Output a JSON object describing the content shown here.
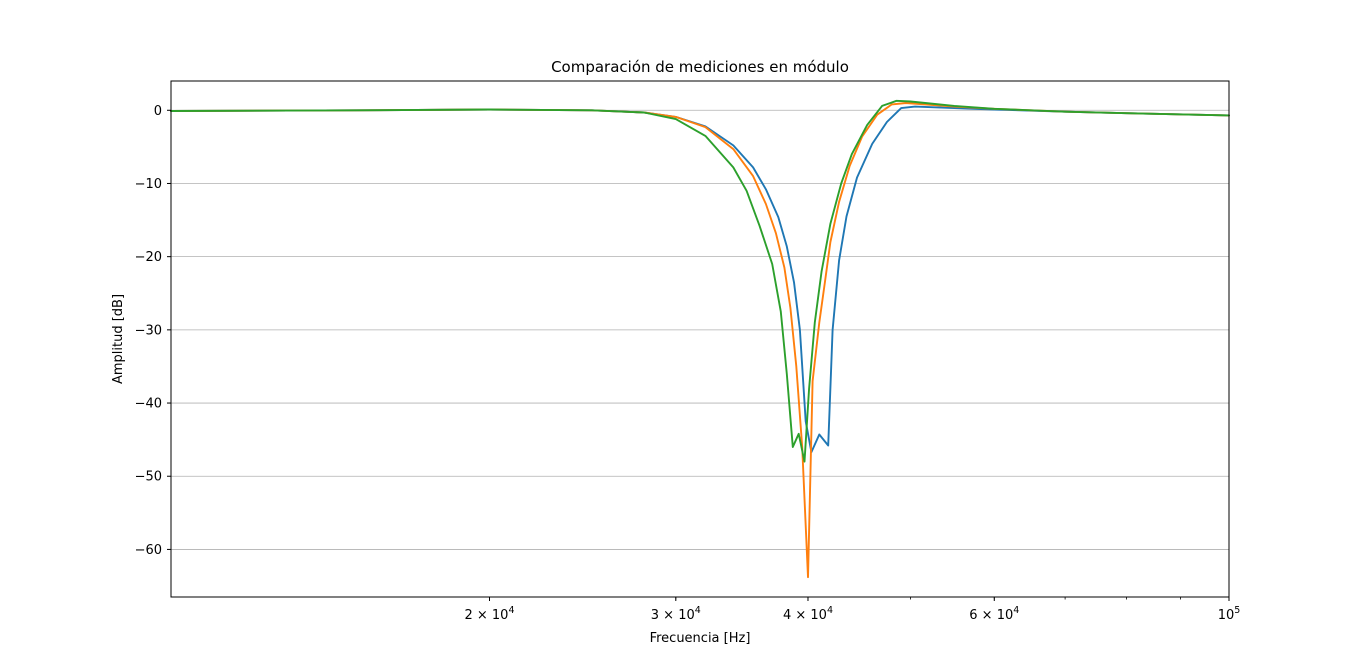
{
  "chart_data": {
    "type": "line",
    "title": "Comparación de mediciones en módulo",
    "xlabel": "Frecuencia [Hz]",
    "ylabel": "Amplitud [dB]",
    "xscale": "log",
    "xlim": [
      10000,
      100000
    ],
    "ylim": [
      -66.5,
      4
    ],
    "grid": "horizontal",
    "legend": "none",
    "x_ticks": [
      {
        "value": 20000,
        "mantissa": "2",
        "exponent": "4"
      },
      {
        "value": 30000,
        "mantissa": "3",
        "exponent": "4"
      },
      {
        "value": 40000,
        "mantissa": "4",
        "exponent": "4"
      },
      {
        "value": 60000,
        "mantissa": "6",
        "exponent": "4"
      },
      {
        "value": 100000,
        "mantissa": "",
        "exponent": "5"
      }
    ],
    "x_tick_base": "10",
    "y_ticks": [
      0,
      -10,
      -20,
      -30,
      -40,
      -50,
      -60
    ],
    "series": [
      {
        "color": "#1f77b4",
        "x": [
          10000,
          15000,
          20000,
          25000,
          28000,
          30000,
          32000,
          34000,
          35500,
          36500,
          37500,
          38200,
          38800,
          39300,
          39800,
          40300,
          41000,
          41800,
          42200,
          42800,
          43500,
          44500,
          46000,
          47500,
          49000,
          50500,
          55000,
          60000,
          70000,
          80000,
          100000
        ],
        "y": [
          -0.1,
          0.0,
          0.1,
          0.0,
          -0.3,
          -0.9,
          -2.2,
          -4.8,
          -7.8,
          -10.8,
          -14.6,
          -18.6,
          -23.5,
          -30.0,
          -42.5,
          -46.7,
          -44.3,
          -45.8,
          -30.0,
          -20.5,
          -14.5,
          -9.2,
          -4.6,
          -1.6,
          0.3,
          0.5,
          0.3,
          0.1,
          -0.2,
          -0.4,
          -0.7
        ]
      },
      {
        "color": "#ff7f0e",
        "x": [
          10000,
          15000,
          20000,
          25000,
          28000,
          30000,
          32000,
          34000,
          35500,
          36500,
          37300,
          38000,
          38500,
          39000,
          39500,
          40000,
          40400,
          41000,
          41500,
          42000,
          42800,
          43800,
          45000,
          46500,
          48000,
          49500,
          55000,
          60000,
          70000,
          80000,
          100000
        ],
        "y": [
          -0.1,
          0.0,
          0.1,
          0.0,
          -0.3,
          -0.9,
          -2.3,
          -5.3,
          -9.0,
          -12.8,
          -16.8,
          -21.5,
          -27.0,
          -35.0,
          -46.0,
          -63.8,
          -37.0,
          -29.0,
          -23.5,
          -18.0,
          -12.5,
          -7.6,
          -3.6,
          -0.6,
          0.8,
          1.0,
          0.5,
          0.2,
          -0.2,
          -0.4,
          -0.7
        ]
      },
      {
        "color": "#2ca02c",
        "x": [
          10000,
          15000,
          20000,
          25000,
          28000,
          30000,
          32000,
          34000,
          35000,
          36000,
          37000,
          37700,
          38200,
          38700,
          39200,
          39700,
          40100,
          40600,
          41200,
          42000,
          43000,
          44000,
          45500,
          47000,
          48500,
          50000,
          55000,
          60000,
          70000,
          80000,
          100000
        ],
        "y": [
          -0.1,
          0.0,
          0.1,
          0.0,
          -0.3,
          -1.2,
          -3.5,
          -7.8,
          -11.0,
          -15.8,
          -21.0,
          -27.5,
          -36.0,
          -46.0,
          -44.2,
          -48.0,
          -38.0,
          -29.0,
          -22.0,
          -15.5,
          -10.0,
          -6.0,
          -2.0,
          0.6,
          1.3,
          1.2,
          0.6,
          0.2,
          -0.2,
          -0.4,
          -0.7
        ]
      }
    ]
  }
}
